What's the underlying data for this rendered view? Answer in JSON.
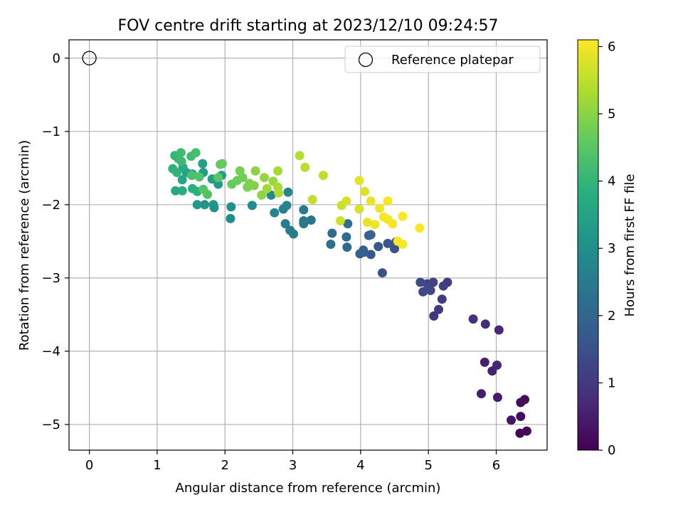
{
  "chart_data": {
    "type": "scatter",
    "title": "FOV centre drift starting at 2023/12/10 09:24:57",
    "xlabel": "Angular distance from reference (arcmin)",
    "ylabel": "Rotation from reference (arcmin)",
    "xlim": [
      -0.3,
      6.75
    ],
    "ylim": [
      -5.35,
      0.25
    ],
    "xticks": [
      0,
      1,
      2,
      3,
      4,
      5,
      6
    ],
    "yticks": [
      0,
      -1,
      -2,
      -3,
      -4,
      -5
    ],
    "xtick_labels": [
      "0",
      "1",
      "2",
      "3",
      "4",
      "5",
      "6"
    ],
    "ytick_labels": [
      "0",
      "−1",
      "−2",
      "−3",
      "−4",
      "−5"
    ],
    "grid": true,
    "legend": {
      "position": "top-right",
      "entries": [
        "Reference platepar"
      ]
    },
    "reference_point": {
      "x": 0,
      "y": 0,
      "label": "Reference platepar",
      "marker": "open-circle"
    },
    "colorbar": {
      "label": "Hours from first FF file",
      "range": [
        0,
        6.1
      ],
      "ticks": [
        0,
        1,
        2,
        3,
        4,
        5,
        6
      ],
      "tick_labels": [
        "0",
        "1",
        "2",
        "3",
        "4",
        "5",
        "6"
      ],
      "colormap": "viridis"
    },
    "series": [
      {
        "columns": [
          "x",
          "y",
          "hours"
        ],
        "points": [
          [
            6.35,
            -5.12,
            0.05
          ],
          [
            6.45,
            -5.09,
            0.1
          ],
          [
            6.36,
            -4.7,
            0.15
          ],
          [
            6.42,
            -4.66,
            0.2
          ],
          [
            6.36,
            -4.89,
            0.25
          ],
          [
            6.22,
            -4.94,
            0.35
          ],
          [
            6.02,
            -4.63,
            0.45
          ],
          [
            5.78,
            -4.58,
            0.5
          ],
          [
            5.83,
            -4.15,
            0.55
          ],
          [
            5.94,
            -4.27,
            0.6
          ],
          [
            6.01,
            -4.19,
            0.65
          ],
          [
            6.04,
            -3.71,
            0.7
          ],
          [
            5.84,
            -3.63,
            0.75
          ],
          [
            5.66,
            -3.56,
            0.8
          ],
          [
            5.08,
            -3.52,
            0.95
          ],
          [
            5.15,
            -3.43,
            1.0
          ],
          [
            5.2,
            -3.29,
            1.05
          ],
          [
            5.28,
            -3.06,
            1.1
          ],
          [
            5.22,
            -3.11,
            1.15
          ],
          [
            5.07,
            -3.06,
            1.2
          ],
          [
            4.98,
            -3.08,
            1.25
          ],
          [
            5.03,
            -3.17,
            1.3
          ],
          [
            4.92,
            -3.19,
            1.35
          ],
          [
            4.88,
            -3.06,
            1.4
          ],
          [
            4.32,
            -2.93,
            1.5
          ],
          [
            4.5,
            -2.6,
            1.55
          ],
          [
            4.4,
            -2.53,
            1.6
          ],
          [
            4.52,
            -2.51,
            1.65
          ],
          [
            4.26,
            -2.57,
            1.7
          ],
          [
            4.15,
            -2.68,
            1.75
          ],
          [
            4.05,
            -2.65,
            1.8
          ],
          [
            3.99,
            -2.67,
            1.85
          ],
          [
            4.04,
            -2.62,
            1.9
          ],
          [
            4.12,
            -2.42,
            1.95
          ],
          [
            4.15,
            -2.41,
            2.0
          ],
          [
            3.8,
            -2.58,
            2.05
          ],
          [
            3.79,
            -2.44,
            2.1
          ],
          [
            3.58,
            -2.39,
            2.15
          ],
          [
            3.56,
            -2.54,
            2.2
          ],
          [
            3.81,
            -2.26,
            2.25
          ],
          [
            3.27,
            -2.21,
            2.3
          ],
          [
            3.16,
            -2.22,
            2.35
          ],
          [
            3.16,
            -2.26,
            2.4
          ],
          [
            3.16,
            -2.07,
            2.45
          ],
          [
            3.01,
            -2.4,
            2.5
          ],
          [
            2.96,
            -2.35,
            2.55
          ],
          [
            2.89,
            -2.26,
            2.6
          ],
          [
            2.86,
            -2.06,
            2.65
          ],
          [
            2.91,
            -2.01,
            2.7
          ],
          [
            2.73,
            -2.11,
            2.75
          ],
          [
            2.93,
            -1.83,
            2.8
          ],
          [
            2.68,
            -1.87,
            2.85
          ],
          [
            2.4,
            -2.01,
            2.9
          ],
          [
            2.08,
            -2.19,
            2.95
          ],
          [
            2.09,
            -2.03,
            3.0
          ],
          [
            1.84,
            -2.04,
            3.05
          ],
          [
            1.7,
            -2.0,
            3.1
          ],
          [
            1.83,
            -2.0,
            3.15
          ],
          [
            1.59,
            -2.0,
            3.2
          ],
          [
            1.9,
            -1.72,
            3.25
          ],
          [
            1.68,
            -1.56,
            3.3
          ],
          [
            1.95,
            -1.6,
            3.35
          ],
          [
            1.81,
            -1.65,
            3.4
          ],
          [
            1.67,
            -1.44,
            3.45
          ],
          [
            1.43,
            -1.56,
            3.5
          ],
          [
            1.37,
            -1.66,
            3.55
          ],
          [
            1.52,
            -1.58,
            3.6
          ],
          [
            1.38,
            -1.49,
            3.65
          ],
          [
            1.27,
            -1.81,
            3.7
          ],
          [
            1.37,
            -1.81,
            3.75
          ],
          [
            1.52,
            -1.78,
            3.8
          ],
          [
            1.59,
            -1.82,
            3.85
          ],
          [
            1.23,
            -1.51,
            3.9
          ],
          [
            1.29,
            -1.56,
            3.95
          ],
          [
            1.26,
            -1.33,
            4.0
          ],
          [
            1.31,
            -1.37,
            4.05
          ],
          [
            1.36,
            -1.41,
            4.1
          ],
          [
            1.35,
            -1.29,
            4.15
          ],
          [
            1.5,
            -1.34,
            4.2
          ],
          [
            1.57,
            -1.29,
            4.25
          ],
          [
            1.51,
            -1.6,
            4.3
          ],
          [
            1.62,
            -1.62,
            4.35
          ],
          [
            1.74,
            -1.86,
            4.4
          ],
          [
            1.68,
            -1.79,
            4.45
          ],
          [
            1.9,
            -1.63,
            4.5
          ],
          [
            1.93,
            -1.45,
            4.55
          ],
          [
            1.96,
            -1.44,
            4.6
          ],
          [
            2.1,
            -1.72,
            4.65
          ],
          [
            2.18,
            -1.67,
            4.7
          ],
          [
            2.26,
            -1.63,
            4.75
          ],
          [
            2.22,
            -1.54,
            4.8
          ],
          [
            2.33,
            -1.76,
            4.85
          ],
          [
            2.36,
            -1.71,
            4.9
          ],
          [
            2.43,
            -1.74,
            4.95
          ],
          [
            2.45,
            -1.54,
            5.0
          ],
          [
            2.54,
            -1.87,
            5.05
          ],
          [
            2.58,
            -1.63,
            5.1
          ],
          [
            2.71,
            -1.68,
            5.15
          ],
          [
            2.62,
            -1.78,
            5.2
          ],
          [
            2.78,
            -1.54,
            5.25
          ],
          [
            2.78,
            -1.76,
            5.3
          ],
          [
            2.79,
            -1.84,
            5.35
          ],
          [
            3.1,
            -1.33,
            5.4
          ],
          [
            3.18,
            -1.49,
            5.45
          ],
          [
            3.45,
            -1.6,
            5.5
          ],
          [
            3.29,
            -1.93,
            5.55
          ],
          [
            3.72,
            -2.01,
            5.6
          ],
          [
            3.7,
            -2.22,
            5.65
          ],
          [
            3.79,
            -1.95,
            5.7
          ],
          [
            3.98,
            -2.06,
            5.75
          ],
          [
            4.06,
            -1.82,
            5.8
          ],
          [
            3.98,
            -1.67,
            5.85
          ],
          [
            4.1,
            -2.24,
            5.9
          ],
          [
            4.15,
            -1.95,
            5.92
          ],
          [
            4.21,
            -2.27,
            5.95
          ],
          [
            4.28,
            -2.05,
            5.98
          ],
          [
            4.34,
            -2.17,
            6.0
          ],
          [
            4.4,
            -2.2,
            6.02
          ],
          [
            4.4,
            -1.95,
            6.03
          ],
          [
            4.47,
            -2.26,
            6.05
          ],
          [
            4.55,
            -2.5,
            6.07
          ],
          [
            4.62,
            -2.54,
            6.08
          ],
          [
            4.62,
            -2.16,
            6.09
          ],
          [
            4.87,
            -2.32,
            6.1
          ]
        ]
      }
    ]
  }
}
